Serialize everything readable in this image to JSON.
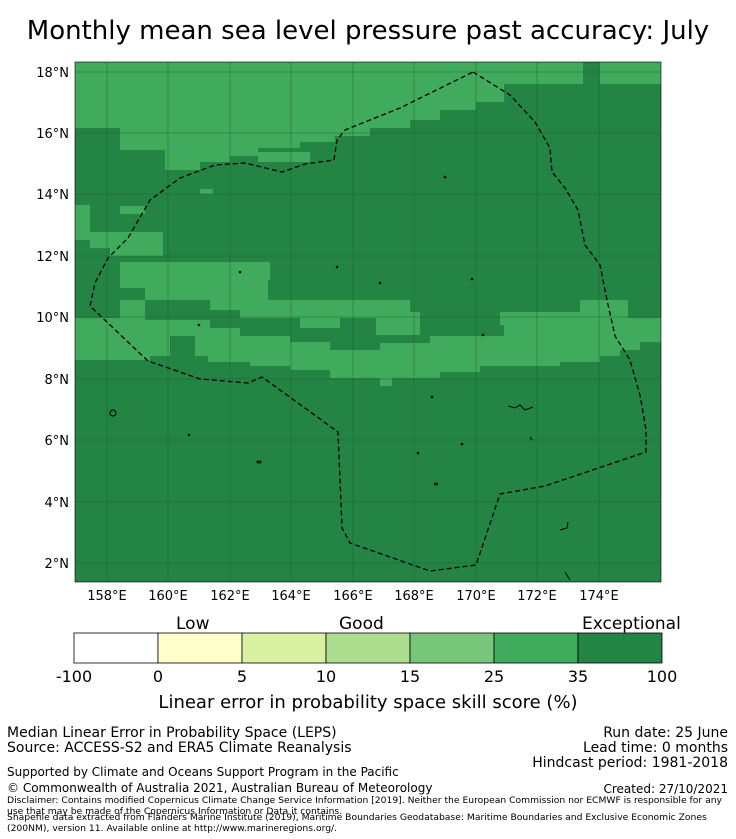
{
  "title": "Monthly mean sea level pressure past accuracy: July",
  "map": {
    "lat_ticks": [
      "18°N",
      "16°N",
      "14°N",
      "12°N",
      "10°N",
      "8°N",
      "6°N",
      "4°N",
      "2°N"
    ],
    "lon_ticks": [
      "158°E",
      "160°E",
      "162°E",
      "164°E",
      "166°E",
      "168°E",
      "170°E",
      "172°E",
      "174°E"
    ]
  },
  "colors": {
    "exceptional": "#238443",
    "good_high": "#41ab5d",
    "good_mid": "#78c679",
    "good_low": "#addd8e",
    "low_high": "#d9f0a3",
    "low": "#ffffcc",
    "none": "#ffffff"
  },
  "colorbar": {
    "category_labels": [
      "Low",
      "Good",
      "Exceptional"
    ],
    "ticks": [
      "-100",
      "0",
      "5",
      "10",
      "15",
      "25",
      "35",
      "100"
    ],
    "title": "Linear error in probability space skill score (%)"
  },
  "info": {
    "line1": "Median Linear Error in Probability Space (LEPS)",
    "line2": "Source: ACCESS-S2 and ERA5 Climate Reanalysis",
    "support": "Supported by Climate and Oceans Support Program in the Pacific",
    "copyright": "© Commonwealth of Australia 2021, Australian Bureau of Meteorology",
    "disclaimer": "Disclaimer: Contains modified Copernicus Climate Change Service Information [2019]. Neither the European Commission nor ECMWF is responsible for any use that may be made of the Copernicus Information or Data it contains.",
    "shapefile": "Shapefile data extracted from Flanders Marine Institute (2019), Maritime Boundaries Geodatabase: Maritime Boundaries and Exclusive Economic Zones (200NM), version 11. Available online at http://www.marineregions.org/.",
    "run_date": "Run date: 25 June",
    "lead_time": "Lead time: 0 months",
    "hindcast": "Hindcast period: 1981-2018",
    "created": "Created: 27/10/2021"
  }
}
